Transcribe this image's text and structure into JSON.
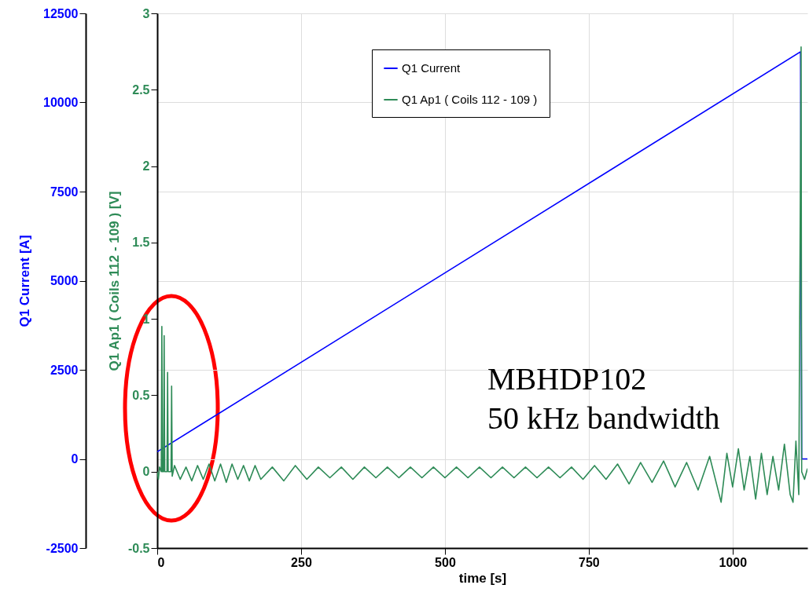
{
  "chart_data": {
    "type": "line",
    "xlabel": "time [s]",
    "ylabel": "Q1 Current [A]",
    "y2label": "Q1 Ap1 ( Coils 112 - 109 ) [V]",
    "xlim": [
      0,
      1130
    ],
    "xticks": [
      0,
      250,
      500,
      750,
      1000
    ],
    "ylim": [
      -2500,
      12500
    ],
    "yticks": [
      -2500,
      0,
      2500,
      5000,
      7500,
      10000,
      12500
    ],
    "y2lim": [
      -0.5,
      3
    ],
    "y2ticks": [
      -0.5,
      0,
      0.5,
      1,
      1.5,
      2,
      2.5,
      3
    ],
    "grid": true,
    "legend": "top",
    "line_style": "solid",
    "marker": "none",
    "annotations": [
      "MBHDP102",
      "50 kHz bandwidth"
    ],
    "series": [
      {
        "name": "Q1 Current",
        "color": "#0000ff",
        "x": [
          0,
          1118,
          1120,
          1130
        ],
        "values": [
          200,
          11420,
          0,
          0
        ]
      },
      {
        "name": "Q1 Ap1 ( Coils 112 - 109 )",
        "color": "#2e8b57",
        "axis": "y2",
        "x": [
          0,
          2,
          4,
          7,
          8,
          9,
          11,
          12,
          13,
          17,
          18,
          19,
          24,
          25,
          26,
          30,
          40,
          50,
          60,
          70,
          80,
          90,
          100,
          110,
          120,
          130,
          140,
          150,
          160,
          170,
          180,
          200,
          220,
          240,
          260,
          280,
          300,
          320,
          340,
          360,
          380,
          400,
          420,
          440,
          460,
          480,
          500,
          520,
          540,
          560,
          580,
          600,
          620,
          640,
          660,
          680,
          700,
          720,
          740,
          760,
          780,
          800,
          820,
          840,
          860,
          880,
          900,
          920,
          940,
          960,
          980,
          990,
          1000,
          1010,
          1020,
          1030,
          1040,
          1050,
          1060,
          1070,
          1080,
          1090,
          1100,
          1105,
          1110,
          1115,
          1119,
          1120,
          1125,
          1130
        ],
        "values": [
          0,
          -0.05,
          0.03,
          0,
          0.95,
          0,
          0,
          0.89,
          0,
          0,
          0.65,
          0,
          0,
          0.56,
          -0.03,
          0.04,
          -0.05,
          0.03,
          -0.06,
          0.04,
          -0.05,
          0.05,
          -0.06,
          0.05,
          -0.07,
          0.05,
          -0.05,
          0.04,
          -0.06,
          0.04,
          -0.05,
          0.03,
          -0.06,
          0.04,
          -0.05,
          0.03,
          -0.04,
          0.03,
          -0.05,
          0.03,
          -0.04,
          0.03,
          -0.04,
          0.03,
          -0.04,
          0.03,
          -0.04,
          0.03,
          -0.04,
          0.03,
          -0.04,
          0.03,
          -0.04,
          0.03,
          -0.04,
          0.03,
          -0.04,
          0.03,
          -0.05,
          0.04,
          -0.05,
          0.05,
          -0.08,
          0.06,
          -0.07,
          0.07,
          -0.1,
          0.06,
          -0.12,
          0.1,
          -0.2,
          0.12,
          -0.1,
          0.15,
          -0.12,
          0.1,
          -0.18,
          0.12,
          -0.15,
          0.1,
          -0.12,
          0.18,
          -0.15,
          -0.2,
          0.2,
          -0.15,
          2.78,
          0,
          -0.05,
          0.02
        ]
      }
    ]
  }
}
